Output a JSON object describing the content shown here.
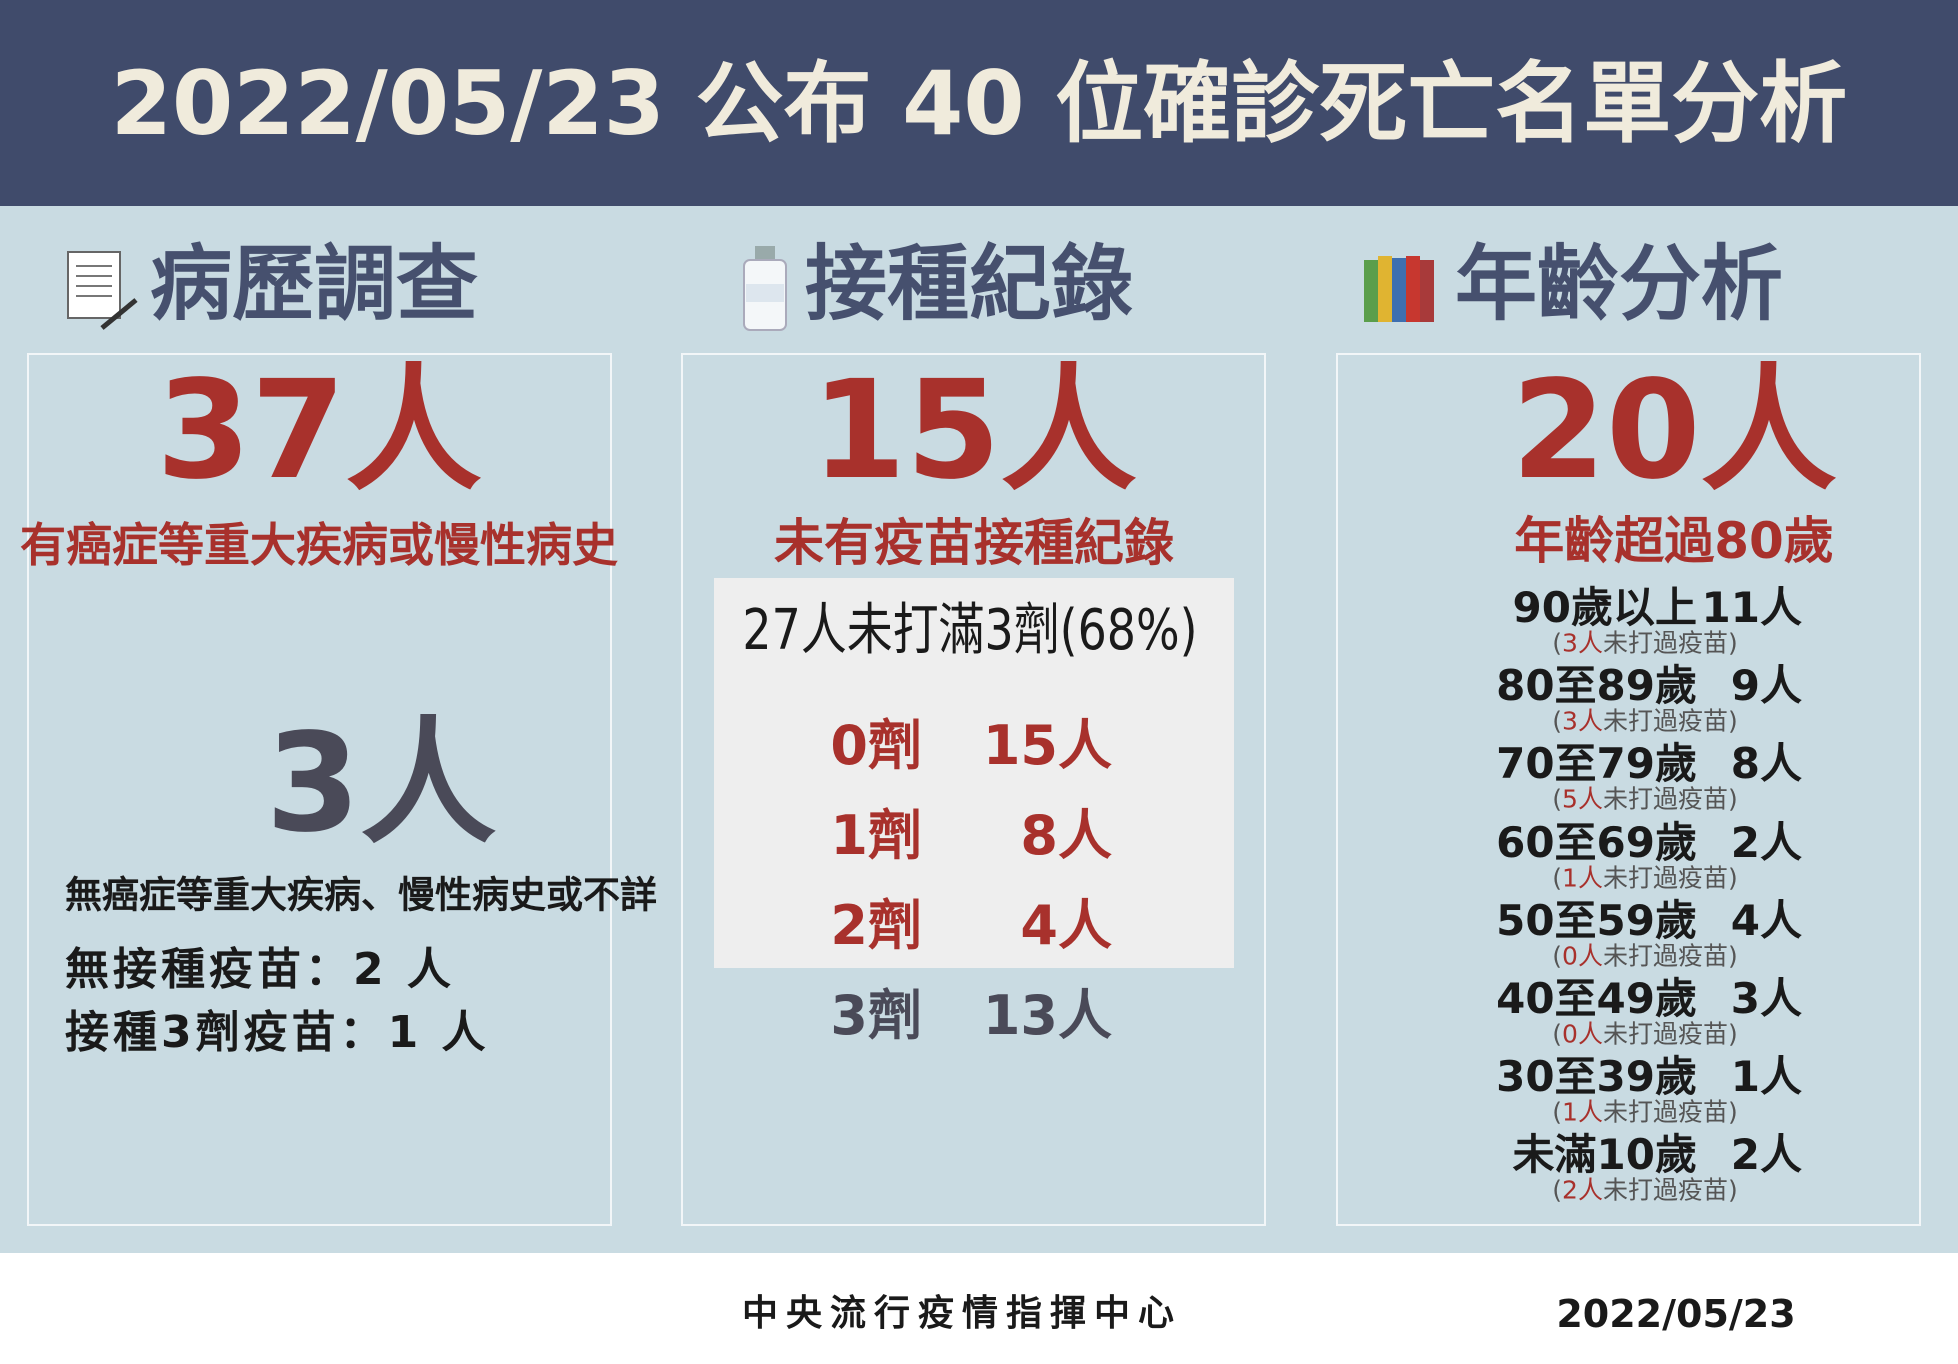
{
  "header": {
    "title": "2022/05/23 公布 40 位確診死亡名單分析"
  },
  "sections": [
    {
      "heading": "病歷調查",
      "big": "37人",
      "caption": "有癌症等重大疾病或慢性病史",
      "big2": "3人",
      "caption2": "無癌症等重大疾病、慢性病史或不詳",
      "lines": [
        "無接種疫苗：2 人",
        "接種3劑疫苗：1 人"
      ]
    },
    {
      "heading": "接種紀錄",
      "big": "15人",
      "caption": "未有疫苗接種紀錄",
      "subtitle": "27人未打滿3劑(68%)",
      "rows": [
        [
          "0劑",
          "15人"
        ],
        [
          "1劑",
          "8人"
        ],
        [
          "2劑",
          "4人"
        ],
        [
          "3劑",
          "13人"
        ]
      ]
    },
    {
      "heading": "年齡分析",
      "big": "20人",
      "caption": "年齡超過80歲",
      "rows": [
        {
          "group": "90歲以上",
          "count": "11人",
          "note": [
            "(",
            "3人",
            "未打過疫苗)"
          ]
        },
        {
          "group": "80至89歲",
          "count": "9人",
          "note": [
            "(",
            "3人",
            "未打過疫苗)"
          ]
        },
        {
          "group": "70至79歲",
          "count": "8人",
          "note": [
            "(",
            "5人",
            "未打過疫苗)"
          ]
        },
        {
          "group": "60至69歲",
          "count": "2人",
          "note": [
            "(",
            "1人",
            "未打過疫苗)"
          ]
        },
        {
          "group": "50至59歲",
          "count": "4人",
          "note": [
            "(",
            "0人",
            "未打過疫苗)"
          ]
        },
        {
          "group": "40至49歲",
          "count": "3人",
          "note": [
            "(",
            "0人",
            "未打過疫苗)"
          ]
        },
        {
          "group": "30至39歲",
          "count": "1人",
          "note": [
            "(",
            "1人",
            "未打過疫苗)"
          ]
        },
        {
          "group": "未滿10歲",
          "count": "2人",
          "note": [
            "(",
            "2人",
            "未打過疫苗)"
          ]
        }
      ]
    }
  ],
  "footer": {
    "agency": "中央流行疫情指揮中心",
    "date": "2022/05/23"
  }
}
